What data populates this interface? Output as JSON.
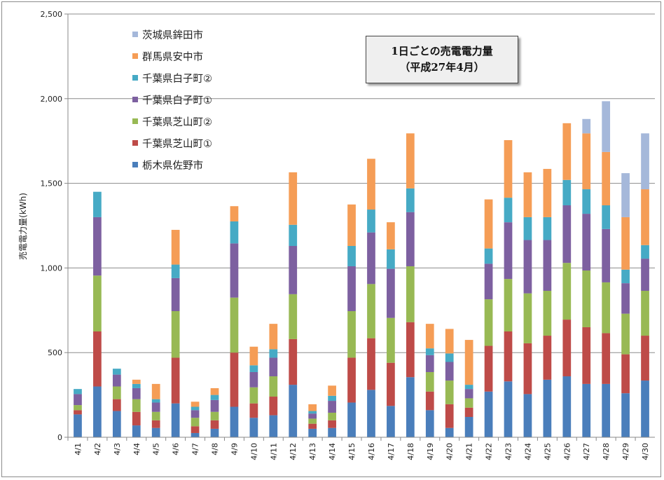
{
  "chart_data": {
    "type": "bar",
    "stacked": true,
    "title": "1日ごとの売電電力量",
    "subtitle": "（平成27年4月）",
    "xlabel": "",
    "ylabel": "売電電力量(kWh)",
    "ylim": [
      0,
      2500
    ],
    "yticks": [
      "0",
      "500",
      "1,000",
      "1,500",
      "2,000",
      "2,500"
    ],
    "grid": true,
    "legend_position": "top-left",
    "categories": [
      "4/1",
      "4/2",
      "4/3",
      "4/4",
      "4/5",
      "4/6",
      "4/7",
      "4/8",
      "4/9",
      "4/10",
      "4/11",
      "4/12",
      "4/13",
      "4/14",
      "4/15",
      "4/16",
      "4/17",
      "4/18",
      "4/19",
      "4/20",
      "4/21",
      "4/22",
      "4/23",
      "4/24",
      "4/25",
      "4/26",
      "4/27",
      "4/28",
      "4/29",
      "4/30"
    ],
    "series": [
      {
        "name": "栃木県佐野市",
        "color": "#4a7ebb",
        "values": [
          135,
          300,
          155,
          70,
          55,
          200,
          25,
          50,
          180,
          115,
          130,
          310,
          50,
          55,
          205,
          280,
          185,
          355,
          160,
          55,
          120,
          270,
          330,
          255,
          340,
          360,
          315,
          315,
          260,
          335
        ]
      },
      {
        "name": "千葉県芝山町①",
        "color": "#be4b48",
        "values": [
          25,
          325,
          70,
          80,
          45,
          270,
          40,
          50,
          320,
          85,
          110,
          270,
          30,
          45,
          265,
          305,
          255,
          325,
          110,
          140,
          55,
          270,
          295,
          300,
          260,
          335,
          335,
          300,
          230,
          265
        ]
      },
      {
        "name": "千葉県芝山町②",
        "color": "#98b954",
        "values": [
          30,
          330,
          75,
          75,
          50,
          275,
          50,
          50,
          325,
          95,
          120,
          265,
          30,
          45,
          275,
          320,
          265,
          330,
          115,
          140,
          55,
          275,
          310,
          295,
          265,
          335,
          335,
          300,
          240,
          265
        ]
      },
      {
        "name": "千葉県白子町①",
        "color": "#7d60a0",
        "values": [
          65,
          345,
          70,
          65,
          55,
          195,
          45,
          70,
          320,
          90,
          110,
          285,
          30,
          70,
          265,
          305,
          290,
          320,
          100,
          110,
          55,
          210,
          335,
          315,
          300,
          340,
          335,
          315,
          180,
          190
        ]
      },
      {
        "name": "千葉県白子町②",
        "color": "#46aac5",
        "values": [
          30,
          150,
          35,
          25,
          20,
          80,
          20,
          30,
          130,
          40,
          50,
          125,
          15,
          30,
          120,
          135,
          115,
          140,
          40,
          50,
          25,
          90,
          145,
          135,
          135,
          150,
          145,
          140,
          80,
          80
        ]
      },
      {
        "name": "群馬県安中市",
        "color": "#f59d56",
        "values": [
          0,
          0,
          0,
          25,
          90,
          205,
          30,
          40,
          90,
          110,
          150,
          310,
          40,
          60,
          245,
          300,
          160,
          325,
          145,
          145,
          265,
          290,
          340,
          265,
          285,
          335,
          330,
          315,
          310,
          330
        ]
      },
      {
        "name": "茨城県鉾田市",
        "color": "#a5b8da",
        "values": [
          0,
          0,
          0,
          0,
          0,
          0,
          0,
          0,
          0,
          0,
          0,
          0,
          0,
          0,
          0,
          0,
          0,
          0,
          0,
          0,
          0,
          0,
          0,
          0,
          0,
          0,
          85,
          300,
          260,
          330
        ]
      }
    ]
  }
}
